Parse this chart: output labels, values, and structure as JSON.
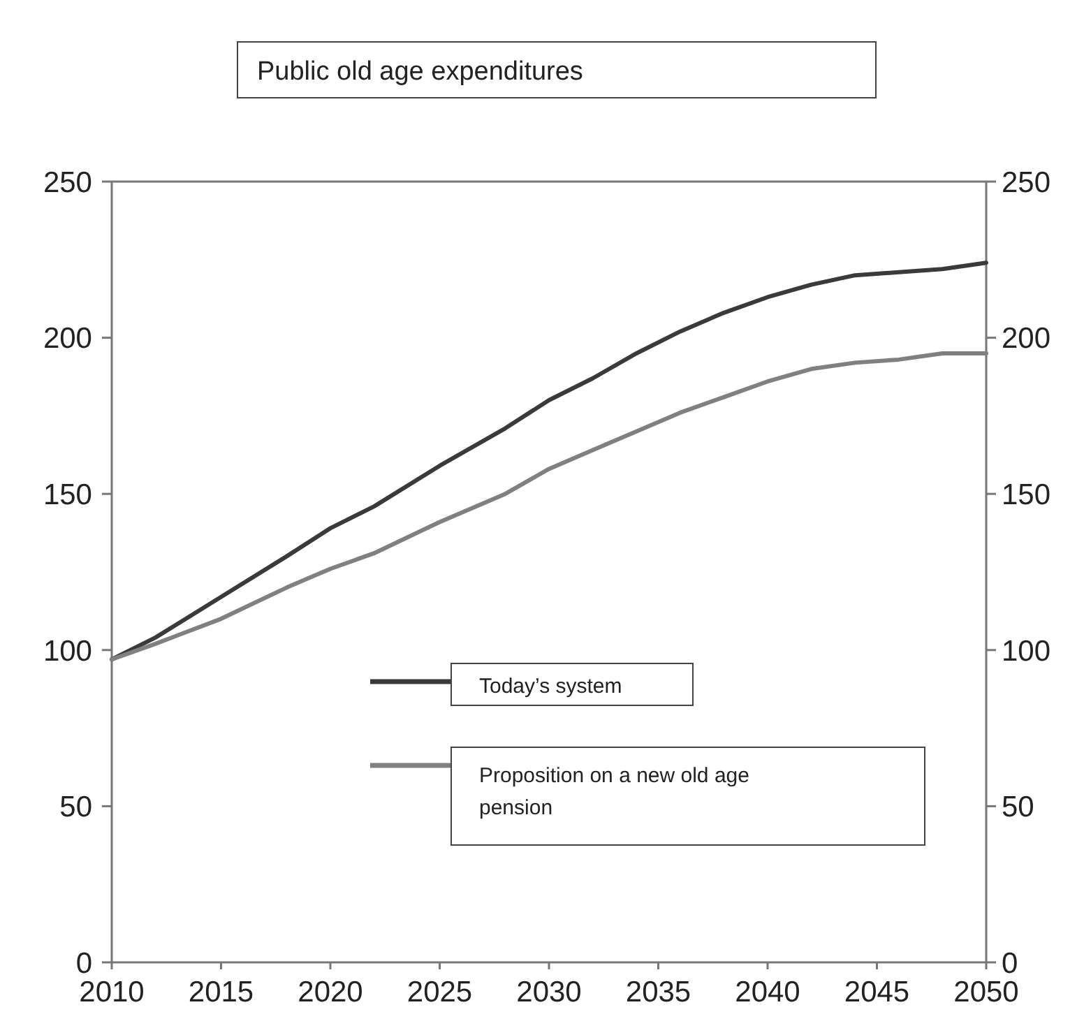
{
  "chart_data": {
    "type": "line",
    "title": "Public old age expenditures",
    "x": [
      2010,
      2012,
      2015,
      2018,
      2020,
      2022,
      2025,
      2028,
      2030,
      2032,
      2034,
      2036,
      2038,
      2040,
      2042,
      2044,
      2046,
      2048,
      2050
    ],
    "series": [
      {
        "name": "Today’s system",
        "color": "#3a3a3a",
        "values": [
          97,
          104,
          117,
          130,
          139,
          146,
          159,
          171,
          180,
          187,
          195,
          202,
          208,
          213,
          217,
          220,
          221,
          222,
          224
        ]
      },
      {
        "name": "Proposition on a new old age pension",
        "color": "#808080",
        "values": [
          97,
          102,
          110,
          120,
          126,
          131,
          141,
          150,
          158,
          164,
          170,
          176,
          181,
          186,
          190,
          192,
          193,
          195,
          195
        ]
      }
    ],
    "xlim": [
      2010,
      2050
    ],
    "xticks": [
      2010,
      2015,
      2020,
      2025,
      2030,
      2035,
      2040,
      2045,
      2050
    ],
    "ylim": [
      0,
      250
    ],
    "yticks": [
      0,
      50,
      100,
      150,
      200,
      250
    ],
    "y2lim": [
      0,
      250
    ],
    "y2ticks": [
      0,
      50,
      100,
      150,
      200,
      250
    ],
    "grid": false,
    "legend": "bottom",
    "marker": "none",
    "line_style": "solid"
  }
}
